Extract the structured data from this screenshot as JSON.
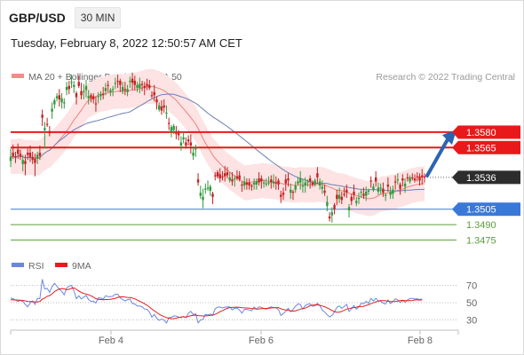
{
  "header": {
    "symbol": "GBP/USD",
    "timeframe": "30 MIN",
    "datetime": "Tuesday, February 8, 2022 12:50:57 AM CET"
  },
  "legend": {
    "ma20_bb": "MA 20 + Bollinger Bands",
    "ma50": "MA 50",
    "copyright": "Research © 2022 Trading Central",
    "rsi": "RSI",
    "ma9": "9MA"
  },
  "colors": {
    "candle_up": "#2f9a3c",
    "candle_down": "#c62020",
    "resistance": "#e8191a",
    "support": "#3a78d8",
    "minor_level": "#5a9e3a",
    "bollinger_fill": "#fde3e3",
    "ma20": "#ef8080",
    "ma50": "#6f7fb4",
    "rsi": "#6b86e0",
    "rsi_ma": "#e51c1c",
    "arrow": "#2b63b5",
    "last_price_badge": "#2d2d2d"
  },
  "chart_data": [
    {
      "type": "candlestick",
      "title": "GBP/USD",
      "interval": "30 MIN",
      "x_tick_labels": [
        "Feb 4",
        "Feb 6",
        "Feb 8"
      ],
      "ylim": [
        1.3465,
        1.3605
      ],
      "last_price": 1.3536,
      "levels": [
        {
          "value": 1.358,
          "label": "1.3580",
          "kind": "resistance"
        },
        {
          "value": 1.3565,
          "label": "1.3565",
          "kind": "resistance"
        },
        {
          "value": 1.3536,
          "label": "1.3536",
          "kind": "last"
        },
        {
          "value": 1.3505,
          "label": "1.3505",
          "kind": "support"
        },
        {
          "value": 1.349,
          "label": "1.3490",
          "kind": "minor"
        },
        {
          "value": 1.3475,
          "label": "1.3475",
          "kind": "minor"
        }
      ],
      "close": [
        1.3556,
        1.3557,
        1.3555,
        1.3559,
        1.3556,
        1.3553,
        1.3549,
        1.3558,
        1.3556,
        1.3553,
        1.355,
        1.3558,
        1.3557,
        1.3594,
        1.3584,
        1.3587,
        1.3579,
        1.3603,
        1.3611,
        1.3615,
        1.3612,
        1.3613,
        1.3609,
        1.3624,
        1.3622,
        1.3629,
        1.3626,
        1.3614,
        1.3625,
        1.3616,
        1.362,
        1.3625,
        1.3615,
        1.3613,
        1.3612,
        1.3607,
        1.3615,
        1.3617,
        1.3616,
        1.3623,
        1.3625,
        1.3621,
        1.3622,
        1.3628,
        1.3629,
        1.3626,
        1.3624,
        1.3621,
        1.3622,
        1.363,
        1.3628,
        1.3626,
        1.3626,
        1.3627,
        1.3626,
        1.3623,
        1.3625,
        1.3623,
        1.3615,
        1.3616,
        1.3609,
        1.3606,
        1.3601,
        1.3604,
        1.3599,
        1.3588,
        1.3585,
        1.3586,
        1.3578,
        1.3577,
        1.357,
        1.3575,
        1.3567,
        1.3571,
        1.3567,
        1.356,
        1.3564,
        1.3531,
        1.3521,
        1.3517,
        1.3525,
        1.3526,
        1.3527,
        1.3517,
        1.3537,
        1.3537,
        1.3535,
        1.3536,
        1.3537,
        1.3538,
        1.3536,
        1.3532,
        1.3535,
        1.3535,
        1.3534,
        1.3528,
        1.3532,
        1.3529,
        1.3528,
        1.3527,
        1.3531,
        1.3532,
        1.3531,
        1.3532,
        1.3531,
        1.353,
        1.3531,
        1.3531,
        1.3532,
        1.353,
        1.3529,
        1.3517,
        1.3519,
        1.353,
        1.3533,
        1.3524,
        1.3521,
        1.3528,
        1.3532,
        1.3535,
        1.3528,
        1.3531,
        1.3532,
        1.3532,
        1.3529,
        1.3533,
        1.3536,
        1.3532,
        1.3527,
        1.3521,
        1.3512,
        1.3496,
        1.3502,
        1.3505,
        1.3515,
        1.3519,
        1.3514,
        1.3519,
        1.3521,
        1.3507,
        1.3513,
        1.3519,
        1.3513,
        1.3516,
        1.3522,
        1.3518,
        1.3522,
        1.3523,
        1.3532,
        1.3527,
        1.3532,
        1.3526,
        1.3526,
        1.3521,
        1.3519,
        1.3527,
        1.3522,
        1.3524,
        1.3531,
        1.3534,
        1.3525,
        1.3533,
        1.353,
        1.3535,
        1.3536,
        1.3535,
        1.3533,
        1.3536,
        1.3533,
        1.3536,
        1.3536
      ],
      "open_offset": [
        -0.0004,
        0.0003,
        0.0001,
        0.0004,
        0.0003,
        -0.0004,
        0.0003,
        0.0002,
        0.0004,
        0.0003,
        0.0004,
        -0.0004,
        0.0003,
        0.0003,
        -0.0002,
        0.0001,
        0.0002,
        -0.0003,
        -0.0004,
        -0.0002,
        0.0004,
        -0.0004,
        -0.0001,
        -0.0003,
        0.0003,
        -0.0001,
        -0.0002,
        0.0004,
        0.0004,
        0.0004,
        -0.0001,
        -0.0004,
        -0.0002,
        0.0003,
        0.0003,
        0.0001,
        -0.0001,
        -0.0002,
        0.0001,
        -0.0003,
        0.0001,
        -0.0002,
        -0.0001,
        -0.0001,
        0.0001,
        0.0004,
        -0.0004,
        0.0001,
        -0.0003,
        -0.0001,
        0.0004,
        0.0004,
        -0.0003,
        -0.0004,
        0.0001,
        0.0002,
        0.0002,
        0.0003,
        0.0001,
        0.0003,
        0.0003,
        -0.0004,
        0.0004,
        0.0002,
        -0.0001,
        0.0001,
        -0.0004,
        -0.0004,
        0.0001,
        0.0002,
        -0.0003,
        -0.0002,
        0.0003,
        0.0002,
        0.0003,
        -0.0003,
        -0.0001,
        0.0003,
        -0.0003,
        -0.0003,
        -0.0001,
        -0.0001,
        -0.0004,
        0.0003,
        0.0001,
        0.0004,
        0.0004,
        0.0001,
        0.0003,
        0.0003,
        -0.0003,
        0.0002,
        -0.0001,
        0.0002,
        0.0004,
        0.0001,
        -0.0004,
        0.0002,
        0.0003,
        0.0001,
        -0.0002,
        -0.0003,
        0.0004,
        0.0003,
        -0.0001,
        -0.0001,
        -0.0001,
        0.0003,
        -0.0002,
        0.0001,
        0.0004,
        0.0002,
        0.0002,
        0.0004,
        0.0002,
        -0.0003,
        0.0001,
        -0.0004,
        -0.0002,
        -0.0004,
        -0.0001,
        -0.0003,
        -0.0001,
        0.0003,
        0.0002,
        -0.0004,
        0.0004,
        -0.0004,
        -0.0002,
        0.0002,
        -0.0004,
        0.0002,
        -0.0003,
        0.0004,
        0.0004,
        -0.0004,
        0.0003,
        0.0001,
        0.0003,
        -0.0003,
        0.0004,
        0.0003,
        -0.0002,
        -0.0001,
        -0.0001,
        0.0002,
        -0.0004,
        -0.0001,
        0.0001,
        -0.0003,
        0.0004,
        -0.0004,
        -0.0001,
        0.0004,
        -0.0001,
        0.0002,
        -0.0003,
        -0.0004,
        0.0001,
        -0.0001,
        0.0004,
        0.0002,
        -0.0003,
        0.0001,
        -0.0004,
        0.0001,
        0.0002,
        0.0001,
        0.0004,
        0.0002,
        0.0001
      ],
      "wick_high": [
        0.0008,
        0.0008,
        0.0005,
        0.0006,
        0.0004,
        0.0005,
        0.0006,
        0.0004,
        0.0007,
        0.0005,
        0.0005,
        0.0003,
        0.0007,
        0.0005,
        0.0006,
        0.0006,
        0.0005,
        0.0006,
        0.0002,
        0.0003,
        0.0006,
        0.0005,
        0.0004,
        0.0005,
        0.0005,
        0.0007,
        0.0004,
        0.0002,
        0.0006,
        0.0008,
        0.0007,
        0.0006,
        0.0006,
        0.0002,
        0.0003,
        0.0007,
        0.0004,
        0.0003,
        0.0007,
        0.0005,
        0.0004,
        0.0002,
        0.0003,
        0.0005,
        0.0006,
        0.0002,
        0.0005,
        0.0007,
        0.0004,
        0.0004,
        0.0006,
        0.0005,
        0.0003,
        0.0006,
        0.0003,
        0.0004,
        0.0005,
        0.0005,
        0.0004,
        0.0007,
        0.0003,
        0.0003,
        0.0006,
        0.0006,
        0.0007,
        0.0005,
        0.0002,
        0.0002,
        0.0007,
        0.0003,
        0.0006,
        0.0005,
        0.0005,
        0.0004,
        0.0008,
        0.0006,
        0.0004,
        0.0006,
        0.0007,
        0.0008,
        0.0005,
        0.0007,
        0.0002,
        0.0002,
        0.0003,
        0.0002,
        0.0006,
        0.0005,
        0.0007,
        0.0005,
        0.0005,
        0.0007,
        0.0003,
        0.0006,
        0.0004,
        0.0003,
        0.0005,
        0.0004,
        0.0004,
        0.0002,
        0.0004,
        0.0003,
        0.0006,
        0.0003,
        0.0003,
        0.0005,
        0.0006,
        0.0004,
        0.0007,
        0.0006,
        0.0002,
        0.0004,
        0.0005,
        0.0005,
        0.0005,
        0.0006,
        0.0002,
        0.0004,
        0.0004,
        0.0007,
        0.0006,
        0.0005,
        0.0002,
        0.0003,
        0.0002,
        0.0002,
        0.0006,
        0.0003,
        0.0006,
        0.0006,
        0.0006,
        0.0004,
        0.0005,
        0.0002,
        0.0005,
        0.0007,
        0.0005,
        0.0006,
        0.0005,
        0.0003,
        0.0003,
        0.0007,
        0.0004,
        0.0005,
        0.0002,
        0.0006,
        0.0005,
        0.0002,
        0.0004,
        0.0003,
        0.0006,
        0.0005,
        0.0004,
        0.0006,
        0.0002,
        0.0007,
        0.0005,
        0.0004,
        0.0006,
        0.0006,
        0.0002,
        0.0004,
        0.0005,
        0.0004,
        0.0002,
        0.0004,
        0.0004,
        0.0004,
        0.0003,
        0.0006,
        0.0003,
        0.0003
      ],
      "wick_low": [
        0.0006,
        0.0003,
        0.0005,
        0.0005,
        0.0003,
        0.0007,
        0.0011,
        0.0005,
        0.0005,
        0.0004,
        0.0013,
        0.0005,
        0.0004,
        0.0008,
        0.0018,
        0.0002,
        0.0003,
        0.0007,
        0.0004,
        0.0003,
        0.0007,
        0.0006,
        0.0005,
        0.0005,
        0.0005,
        0.0005,
        0.0006,
        0.0007,
        0.0002,
        0.0004,
        0.0007,
        0.0007,
        0.0006,
        0.0004,
        0.0004,
        0.0007,
        0.0006,
        0.0004,
        0.0004,
        0.0004,
        0.0006,
        0.0004,
        0.0006,
        0.0005,
        0.0006,
        0.0007,
        0.0003,
        0.0005,
        0.0004,
        0.0006,
        0.0007,
        0.0005,
        0.0004,
        0.0005,
        0.0006,
        0.0007,
        0.0004,
        0.0002,
        0.0002,
        0.0006,
        0.0007,
        0.0002,
        0.0004,
        0.0005,
        0.0005,
        0.0006,
        0.0006,
        0.0004,
        0.0005,
        0.0005,
        0.0005,
        0.0004,
        0.0003,
        0.0004,
        0.0008,
        0.0004,
        0.0007,
        0.0003,
        0.0003,
        0.0008,
        0.0004,
        0.0002,
        0.0005,
        0.0007,
        0.0004,
        0.0002,
        0.0004,
        0.0003,
        0.0005,
        0.0003,
        0.0002,
        0.0004,
        0.0007,
        0.0002,
        0.0002,
        0.0006,
        0.0004,
        0.0005,
        0.0004,
        0.0004,
        0.0005,
        0.0005,
        0.0003,
        0.0007,
        0.0004,
        0.0002,
        0.0002,
        0.0006,
        0.0004,
        0.0006,
        0.0005,
        0.0006,
        0.0005,
        0.0007,
        0.0006,
        0.0006,
        0.0007,
        0.0003,
        0.0002,
        0.0007,
        0.0006,
        0.0007,
        0.0004,
        0.0007,
        0.0002,
        0.0002,
        0.0006,
        0.0004,
        0.0005,
        0.0003,
        0.0005,
        0.0003,
        0.0007,
        0.0005,
        0.0006,
        0.0004,
        0.0004,
        0.0002,
        0.0005,
        0.0007,
        0.0004,
        0.0005,
        0.0003,
        0.0005,
        0.0005,
        0.0003,
        0.0005,
        0.0003,
        0.0006,
        0.0002,
        0.0005,
        0.0003,
        0.0005,
        0.0004,
        0.0005,
        0.0005,
        0.0004,
        0.0005,
        0.0007,
        0.0004,
        0.0006,
        0.0006,
        0.0006,
        0.0003,
        0.0002,
        0.0002,
        0.0002,
        0.0004,
        0.0005,
        0.0007,
        0.0005,
        0.0005
      ]
    },
    {
      "type": "line",
      "title": "RSI",
      "series_names": [
        "RSI",
        "9MA"
      ],
      "y_tick_labels": [
        "70",
        "50",
        "30"
      ],
      "ylim": [
        20,
        80
      ],
      "rsi": [
        55.3,
        54.5,
        53.0,
        51.3,
        52.6,
        51.4,
        47.9,
        45.1,
        49.6,
        52.0,
        47.9,
        55.0,
        54.7,
        77.2,
        65.9,
        66.7,
        62.0,
        68.5,
        72.6,
        69.2,
        65.6,
        62.9,
        59.1,
        66.9,
        69.3,
        70.1,
        63.6,
        54.6,
        58.0,
        54.3,
        56.4,
        58.4,
        53.6,
        51.4,
        51.7,
        49.5,
        55.5,
        55.3,
        54.1,
        58.1,
        56.9,
        57.0,
        57.6,
        59.8,
        59.8,
        55.5,
        53.7,
        52.1,
        53.5,
        54.2,
        49.0,
        48.4,
        46.1,
        46.1,
        45.2,
        42.4,
        42.3,
        39.1,
        32.9,
        36.3,
        31.9,
        29.4,
        30.9,
        29.6,
        26.3,
        32.4,
        32.8,
        34.6,
        34.4,
        33.1,
        32.4,
        33.9,
        32.3,
        37.7,
        39.9,
        36.1,
        37.0,
        26.4,
        29.9,
        30.5,
        36.1,
        35.7,
        36.6,
        35.8,
        42.8,
        44.8,
        44.8,
        43.8,
        44.7,
        45.0,
        44.9,
        41.7,
        43.4,
        43.7,
        41.4,
        37.7,
        42.1,
        42.2,
        41.4,
        40.5,
        44.8,
        42.3,
        45.1,
        44.5,
        43.3,
        42.5,
        44.2,
        45.0,
        44.3,
        43.8,
        42.0,
        35.1,
        37.3,
        40.0,
        43.5,
        39.4,
        42.1,
        45.8,
        48.6,
        47.8,
        42.4,
        46.6,
        48.0,
        48.5,
        45.8,
        46.4,
        49.4,
        46.6,
        41.3,
        39.0,
        35.8,
        33.4,
        35.1,
        39.1,
        44.6,
        46.2,
        43.3,
        45.5,
        47.9,
        39.8,
        43.0,
        46.7,
        42.3,
        44.9,
        49.3,
        48.8,
        51.5,
        49.1,
        55.0,
        52.0,
        55.0,
        52.4,
        51.3,
        49.5,
        48.3,
        53.2,
        49.0,
        51.0,
        54.5,
        53.2,
        50.2,
        52.4,
        50.4,
        53.1,
        54.8,
        55.0,
        54.2,
        54.6,
        53.6,
        54.2
      ],
      "rsi_ma": [
        53.3,
        53.2,
        53.1,
        53.0,
        52.9,
        52.6,
        52.1,
        51.4,
        51.3,
        51.2,
        50.7,
        50.9,
        51.5,
        54.0,
        55.4,
        57.3,
        58.3,
        60.2,
        62.8,
        64.6,
        65.9,
        66.4,
        66.0,
        65.1,
        65.5,
        66.7,
        67.2,
        65.5,
        63.6,
        61.9,
        60.8,
        60.0,
        59.2,
        58.0,
        56.4,
        54.7,
        53.9,
        53.6,
        53.3,
        53.6,
        53.6,
        53.9,
        54.3,
        55.1,
        56.1,
        56.7,
        56.8,
        56.5,
        56.1,
        55.9,
        55.3,
        54.4,
        53.0,
        51.6,
        50.3,
        48.7,
        47.0,
        44.9,
        42.6,
        40.6,
        38.5,
        36.5,
        34.9,
        33.8,
        32.5,
        31.9,
        31.3,
        31.4,
        31.9,
        32.6,
        33.1,
        33.5,
        33.2,
        34.0,
        34.7,
        35.2,
        35.5,
        34.9,
        34.7,
        34.4,
        34.6,
        34.8,
        35.2,
        35.3,
        36.5,
        37.8,
        39.4,
        40.6,
        42.1,
        43.4,
        44.3,
        44.4,
        44.6,
        44.7,
        44.6,
        44.1,
        43.9,
        43.8,
        43.5,
        43.1,
        43.1,
        42.6,
        42.7,
        43.0,
        43.3,
        43.2,
        43.4,
        43.8,
        44.0,
        44.2,
        44.2,
        42.9,
        41.9,
        41.4,
        41.2,
        40.3,
        40.1,
        40.5,
        41.4,
        42.4,
        43.0,
        43.6,
        45.0,
        46.5,
        47.1,
        47.3,
        47.4,
        46.9,
        46.1,
        45.2,
        43.9,
        42.4,
        40.9,
        39.5,
        38.7,
        38.9,
        39.9,
        41.0,
        42.4,
        43.1,
        43.8,
        44.2,
        44.6,
        45.4,
        45.4,
        45.8,
        46.8,
        47.6,
        48.8,
        49.8,
        50.9,
        51.7,
        52.5,
        52.4,
        52.2,
        51.7,
        51.1,
        51.3,
        51.4,
        51.9,
        52.4,
        52.7,
        52.3,
        52.4,
        52.3,
        52.5,
        53.1,
        53.3,
        53.0,
        53.2
      ],
      "bollinger_band_width": 0.0017
    }
  ]
}
